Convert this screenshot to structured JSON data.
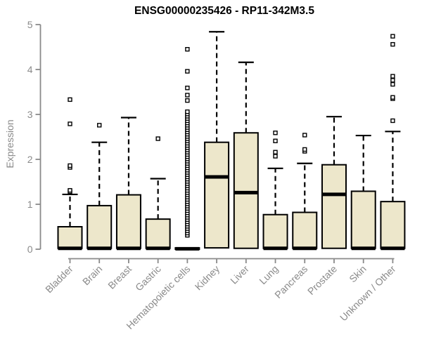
{
  "chart_data": {
    "type": "boxplot",
    "title": "ENSG00000235426 - RP11-342M3.5",
    "ylabel": "Expression",
    "xlabel": "",
    "ylim": [
      0,
      5
    ],
    "yticks": [
      0,
      1,
      2,
      3,
      4,
      5
    ],
    "grid": false,
    "legend": null,
    "categories": [
      "Bladder",
      "Brain",
      "Breast",
      "Gastric",
      "Hematopoietic cells",
      "Kidney",
      "Liver",
      "Lung",
      "Pancreas",
      "Prostate",
      "Skin",
      "Unknown / Other"
    ],
    "series": [
      {
        "category": "Bladder",
        "q1": 0.02,
        "median": 0.02,
        "q3": 0.5,
        "whisker_high": 1.22,
        "outliers": [
          1.28,
          1.31,
          1.82,
          1.86,
          2.79,
          3.33
        ]
      },
      {
        "category": "Brain",
        "q1": 0.02,
        "median": 0.02,
        "q3": 0.97,
        "whisker_high": 2.38,
        "outliers": [
          2.76
        ]
      },
      {
        "category": "Breast",
        "q1": 0.02,
        "median": 0.02,
        "q3": 1.21,
        "whisker_high": 2.93,
        "outliers": []
      },
      {
        "category": "Gastric",
        "q1": 0.02,
        "median": 0.02,
        "q3": 0.67,
        "whisker_high": 1.57,
        "outliers": [
          2.46
        ]
      },
      {
        "category": "Hematopoietic cells",
        "q1": 0.0,
        "median": 0.01,
        "q3": 0.03,
        "whisker_high": null,
        "outliers": [
          0.31,
          0.36,
          0.41,
          0.46,
          0.51,
          0.56,
          0.61,
          0.66,
          0.71,
          0.76,
          0.81,
          0.86,
          0.91,
          0.96,
          1.01,
          1.06,
          1.11,
          1.16,
          1.21,
          1.26,
          1.31,
          1.36,
          1.41,
          1.46,
          1.51,
          1.56,
          1.61,
          1.66,
          1.71,
          1.76,
          1.81,
          1.86,
          1.91,
          1.96,
          2.01,
          2.06,
          2.11,
          2.16,
          2.21,
          2.26,
          2.31,
          2.36,
          2.41,
          2.46,
          2.51,
          2.56,
          2.61,
          2.66,
          2.71,
          2.76,
          2.81,
          2.86,
          2.91,
          2.96,
          3.01,
          3.06,
          3.31,
          3.43,
          3.59,
          3.96,
          4.45
        ]
      },
      {
        "category": "Kidney",
        "q1": 0.03,
        "median": 1.61,
        "q3": 2.38,
        "whisker_high": 4.84,
        "outliers": []
      },
      {
        "category": "Liver",
        "q1": 0.02,
        "median": 1.26,
        "q3": 2.59,
        "whisker_high": 4.16,
        "outliers": []
      },
      {
        "category": "Lung",
        "q1": 0.02,
        "median": 0.02,
        "q3": 0.77,
        "whisker_high": 1.8,
        "outliers": [
          2.07,
          2.16,
          2.41,
          2.59
        ]
      },
      {
        "category": "Pancreas",
        "q1": 0.02,
        "median": 0.02,
        "q3": 0.82,
        "whisker_high": 1.91,
        "outliers": [
          2.18,
          2.22,
          2.54
        ]
      },
      {
        "category": "Prostate",
        "q1": 0.02,
        "median": 1.22,
        "q3": 1.88,
        "whisker_high": 2.95,
        "outliers": []
      },
      {
        "category": "Skin",
        "q1": 0.02,
        "median": 0.02,
        "q3": 1.29,
        "whisker_high": 2.53,
        "outliers": []
      },
      {
        "category": "Unknown / Other",
        "q1": 0.02,
        "median": 0.02,
        "q3": 1.06,
        "whisker_high": 2.62,
        "outliers": [
          2.86,
          3.35,
          3.38,
          3.67,
          3.76,
          3.85,
          4.56,
          4.74
        ]
      }
    ],
    "colors": {
      "box_fill": "#EDE7CB",
      "box_stroke": "#000000",
      "median": "#000000",
      "whisker": "#000000",
      "outlier_fill": "#FFFFFF",
      "outlier_stroke": "#000000",
      "axis": "#8A8A8A",
      "title": "#000000",
      "background": "#FFFFFF"
    }
  }
}
